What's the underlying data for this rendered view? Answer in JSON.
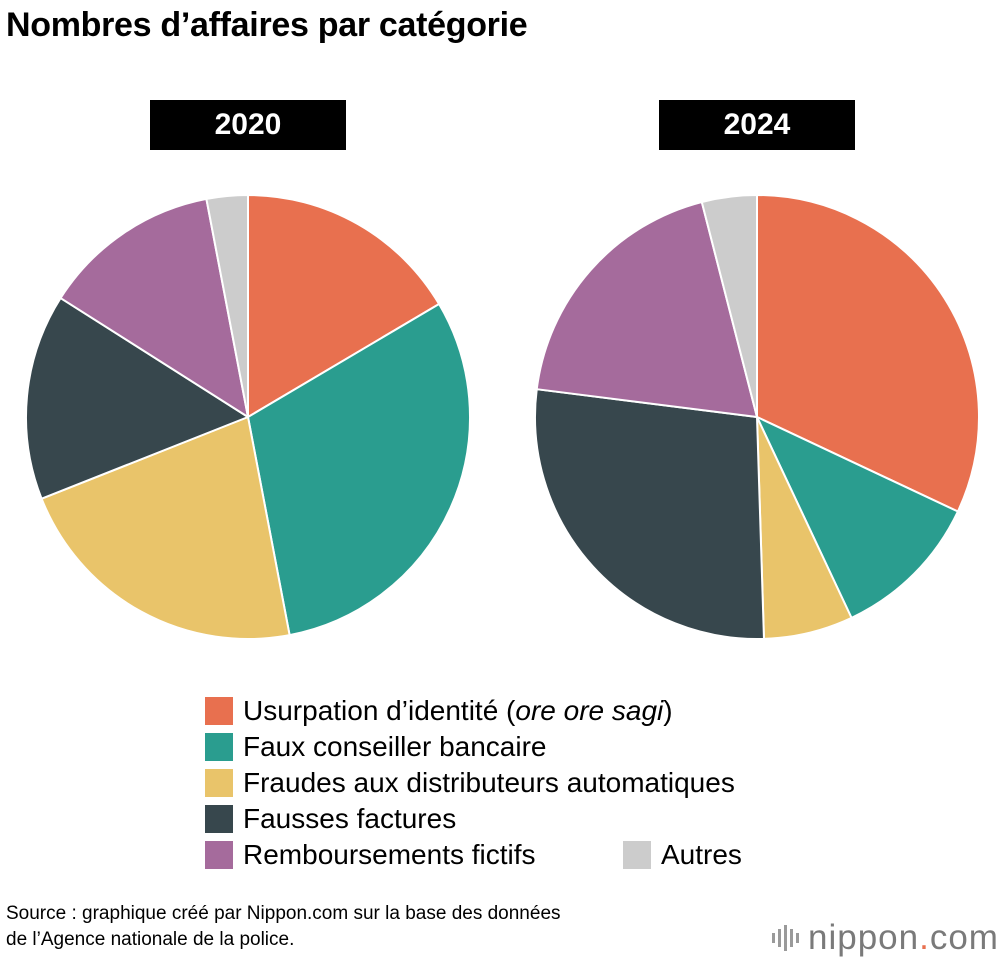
{
  "title": "Nombres d’affaires par catégorie",
  "colors": {
    "usurpation": "#e8704f",
    "faux_conseiller": "#2a9d8f",
    "fraudes_distributeurs": "#e9c46a",
    "fausses_factures": "#37474d",
    "remboursements": "#a56b9c",
    "autres": "#cccccc"
  },
  "legend": {
    "usurpation_main": "Usurpation d’identité (",
    "usurpation_italic": "ore ore sagi",
    "usurpation_close": ")",
    "faux_conseiller": "Faux conseiller bancaire",
    "fraudes_distributeurs": "Fraudes aux distributeurs automatiques",
    "fausses_factures": "Fausses factures",
    "remboursements": "Remboursements fictifs",
    "autres": "Autres"
  },
  "source": {
    "line1": "Source : graphique créé par Nippon.com sur la base des données",
    "line2": "de l’Agence nationale de la police."
  },
  "logo": {
    "name": "nippon",
    "dot": ".",
    "tld": "com"
  },
  "chart_data": [
    {
      "type": "pie",
      "title": "2020",
      "unit": "percent of cases (approximate, read from slice angles)",
      "slices": [
        {
          "name": "Usurpation d’identité (ore ore sagi)",
          "value": 16.5,
          "color": "#e8704f"
        },
        {
          "name": "Faux conseiller bancaire",
          "value": 30.5,
          "color": "#2a9d8f"
        },
        {
          "name": "Fraudes aux distributeurs automatiques",
          "value": 22.0,
          "color": "#e9c46a"
        },
        {
          "name": "Fausses factures",
          "value": 15.0,
          "color": "#37474d"
        },
        {
          "name": "Remboursements fictifs",
          "value": 13.0,
          "color": "#a56b9c"
        },
        {
          "name": "Autres",
          "value": 3.0,
          "color": "#cccccc"
        }
      ]
    },
    {
      "type": "pie",
      "title": "2024",
      "unit": "percent of cases (approximate, read from slice angles)",
      "slices": [
        {
          "name": "Usurpation d’identité (ore ore sagi)",
          "value": 32.0,
          "color": "#e8704f"
        },
        {
          "name": "Faux conseiller bancaire",
          "value": 11.0,
          "color": "#2a9d8f"
        },
        {
          "name": "Fraudes aux distributeurs automatiques",
          "value": 6.5,
          "color": "#e9c46a"
        },
        {
          "name": "Fausses factures",
          "value": 27.5,
          "color": "#37474d"
        },
        {
          "name": "Remboursements fictifs",
          "value": 19.0,
          "color": "#a56b9c"
        },
        {
          "name": "Autres",
          "value": 4.0,
          "color": "#cccccc"
        }
      ]
    }
  ]
}
